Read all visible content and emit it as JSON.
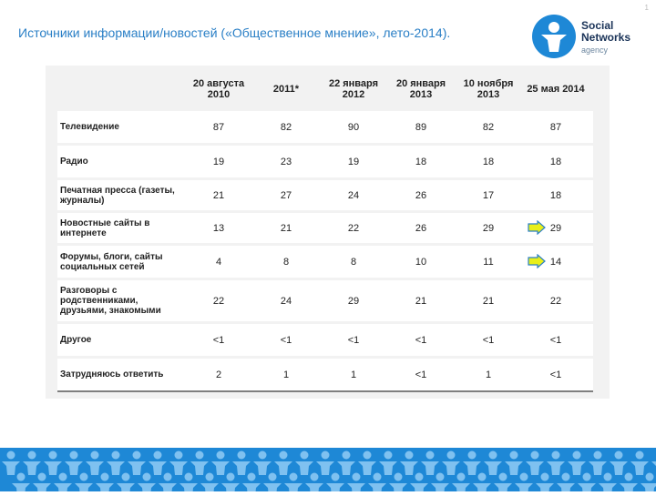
{
  "slide": {
    "title": "Источники информации/новостей («Общественное мнение», лето-2014).",
    "page_number": "1"
  },
  "logo": {
    "line1": "Social",
    "line2": "Networks",
    "line3": "agency"
  },
  "table": {
    "columns": [
      "20 августа 2010",
      "2011*",
      "22 января 2012",
      "20 января 2013",
      "10 ноября 2013",
      "25 мая 2014"
    ],
    "rows": [
      {
        "label": "Телевидение",
        "values": [
          "87",
          "82",
          "90",
          "89",
          "82",
          "87"
        ]
      },
      {
        "label": "Радио",
        "values": [
          "19",
          "23",
          "19",
          "18",
          "18",
          "18"
        ]
      },
      {
        "label": "Печатная пресса (газеты, журналы)",
        "values": [
          "21",
          "27",
          "24",
          "26",
          "17",
          "18"
        ]
      },
      {
        "label": "Новостные сайты в интернете",
        "values": [
          "13",
          "21",
          "22",
          "26",
          "29",
          "29"
        ]
      },
      {
        "label": "Форумы, блоги, сайты социальных сетей",
        "values": [
          "4",
          "8",
          "8",
          "10",
          "11",
          "14"
        ]
      },
      {
        "label": "Разговоры с родственниками, друзьями, знакомыми",
        "values": [
          "22",
          "24",
          "29",
          "21",
          "21",
          "22"
        ]
      },
      {
        "label": "Другое",
        "values": [
          "<1",
          "<1",
          "<1",
          "<1",
          "<1",
          "<1"
        ]
      },
      {
        "label": "Затрудняюсь ответить",
        "values": [
          "2",
          "1",
          "1",
          "<1",
          "1",
          "<1"
        ]
      }
    ]
  },
  "colors": {
    "title": "#2a7fc6",
    "brand_blue": "#1e88d6",
    "arrow_fill": "#e8ef1a",
    "arrow_stroke": "#2a7fc6"
  },
  "icons": {
    "logo": "social-networks-person-icon",
    "highlight": "right-arrow-icon"
  }
}
